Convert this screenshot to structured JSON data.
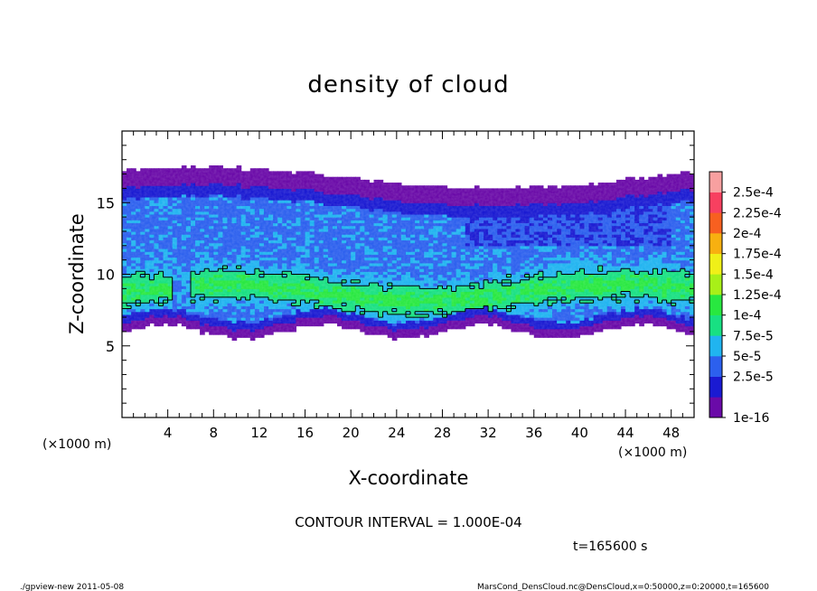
{
  "chart_data": {
    "type": "heatmap",
    "title": "density of cloud",
    "xlabel": "X-coordinate",
    "ylabel": "Z-coordinate",
    "x_unit_left": "(×1000 m)",
    "x_unit_right": "(×1000 m)",
    "xlim": [
      0,
      50
    ],
    "ylim": [
      0,
      20
    ],
    "x_ticks": [
      4,
      8,
      12,
      16,
      20,
      24,
      28,
      32,
      36,
      40,
      44,
      48
    ],
    "y_ticks": [
      5,
      10,
      15
    ],
    "x_tick_labels": [
      "4",
      "8",
      "12",
      "16",
      "20",
      "24",
      "28",
      "32",
      "36",
      "40",
      "44",
      "48"
    ],
    "y_tick_labels": [
      "5",
      "10",
      "15"
    ],
    "contour_interval_text": "CONTOUR INTERVAL = 1.000E-04",
    "time_text": "t=165600 s",
    "colorbar": {
      "levels": [
        "1e-16",
        "2.5e-5",
        "5e-5",
        "7.5e-5",
        "1e-4",
        "1.25e-4",
        "1.5e-4",
        "1.75e-4",
        "2e-4",
        "2.25e-4",
        "2.5e-4"
      ],
      "colors": [
        "#6a0aa8",
        "#1a1ad2",
        "#2c60ee",
        "#20b4f0",
        "#18e082",
        "#28e840",
        "#a8f018",
        "#f0f018",
        "#f8b010",
        "#f86020",
        "#f84060",
        "#f8a0a0"
      ]
    },
    "cloud_layer": {
      "bottom_z": [
        5.5,
        6.5
      ],
      "top_z": [
        16.0,
        17.5
      ],
      "dense_band_z": [
        7.5,
        10.0
      ]
    }
  },
  "footer": {
    "left": "./gpview-new  2011-05-08",
    "right": "MarsCond_DensCloud.nc@DensCloud,x=0:50000,z=0:20000,t=165600"
  }
}
